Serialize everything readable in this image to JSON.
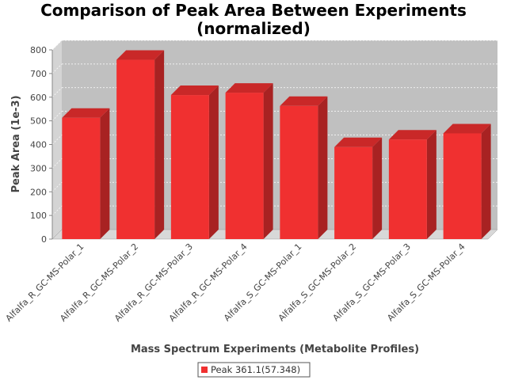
{
  "chart_data": {
    "type": "bar",
    "title": "Comparison of Peak Area Between Experiments\n(normalized)",
    "xlabel": "Mass Spectrum Experiments (Metabolite Profiles)",
    "ylabel": "Peak Area (1e-3)",
    "ylim": [
      0,
      800
    ],
    "yticks": [
      0,
      100,
      200,
      300,
      400,
      500,
      600,
      700,
      800
    ],
    "grid": true,
    "legend_position": "bottom",
    "categories": [
      "Alfalfa_R_GC-MS-Polar_1",
      "Alfalfa_R_GC-MS-Polar_2",
      "Alfalfa_R_GC-MS-Polar_3",
      "Alfalfa_R_GC-MS-Polar_4",
      "Alfalfa_S_GC-MS-Polar_1",
      "Alfalfa_S_GC-MS-Polar_2",
      "Alfalfa_S_GC-MS-Polar_3",
      "Alfalfa_S_GC-MS-Polar_4"
    ],
    "series": [
      {
        "name": "Peak 361.1(57.348)",
        "color": "#f03030",
        "values": [
          513,
          758,
          609,
          619,
          563,
          389,
          421,
          447
        ]
      }
    ],
    "colors": {
      "plot_background": "#c0c0c0",
      "bar_face": "#f03030",
      "bar_top": "#c92828",
      "bar_side": "#a82222"
    }
  }
}
